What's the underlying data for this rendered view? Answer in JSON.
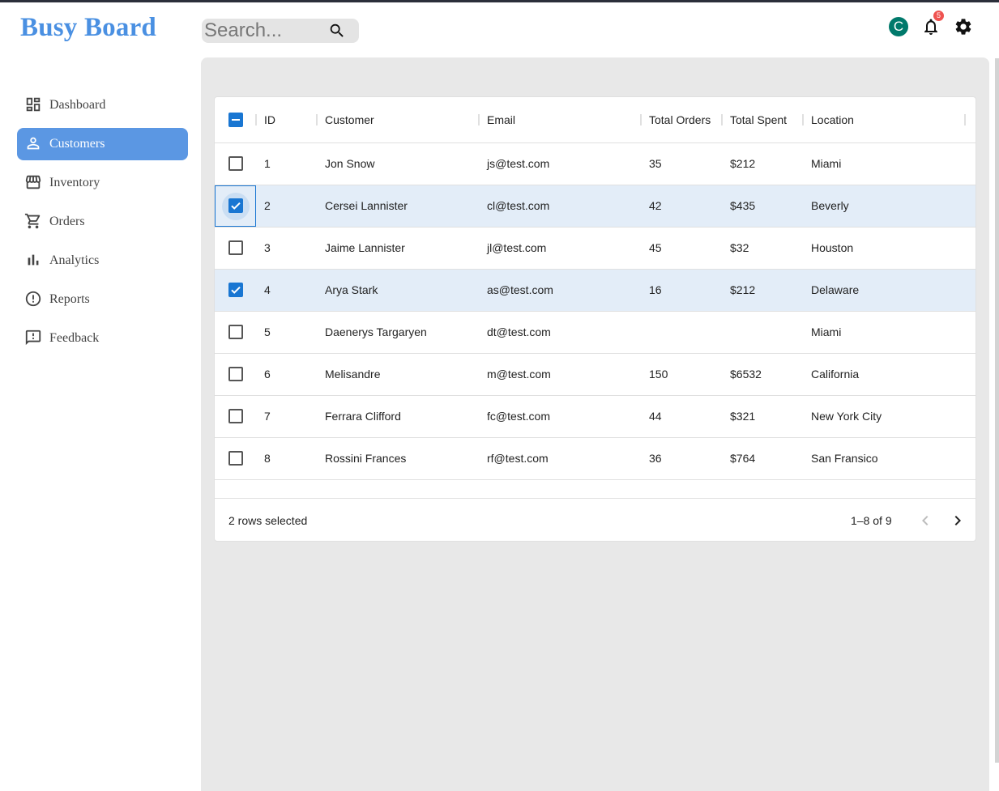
{
  "brand": "Busy Board",
  "search": {
    "placeholder": "Search..."
  },
  "header": {
    "avatar_letter": "C",
    "notification_count": "5"
  },
  "colors": {
    "accent": "#5b97e3",
    "brand": "#4a90e2",
    "checkbox": "#1976d2",
    "avatar": "#00796b",
    "badge": "#ef5350"
  },
  "sidebar": {
    "items": [
      {
        "label": "Dashboard",
        "icon": "dashboard-icon"
      },
      {
        "label": "Customers",
        "icon": "person-icon",
        "active": true
      },
      {
        "label": "Inventory",
        "icon": "store-icon"
      },
      {
        "label": "Orders",
        "icon": "cart-icon"
      },
      {
        "label": "Analytics",
        "icon": "bar-chart-icon"
      },
      {
        "label": "Reports",
        "icon": "alert-circle-icon"
      },
      {
        "label": "Feedback",
        "icon": "feedback-icon"
      }
    ]
  },
  "table": {
    "columns": [
      "ID",
      "Customer",
      "Email",
      "Total Orders",
      "Total Spent",
      "Location"
    ],
    "rows": [
      {
        "id": "1",
        "customer": "Jon Snow",
        "email": "js@test.com",
        "orders": "35",
        "spent": "$212",
        "location": "Miami",
        "selected": false
      },
      {
        "id": "2",
        "customer": "Cersei Lannister",
        "email": "cl@test.com",
        "orders": "42",
        "spent": "$435",
        "location": "Beverly",
        "selected": true
      },
      {
        "id": "3",
        "customer": "Jaime Lannister",
        "email": "jl@test.com",
        "orders": "45",
        "spent": "$32",
        "location": "Houston",
        "selected": false
      },
      {
        "id": "4",
        "customer": "Arya Stark",
        "email": "as@test.com",
        "orders": "16",
        "spent": "$212",
        "location": "Delaware",
        "selected": true
      },
      {
        "id": "5",
        "customer": "Daenerys Targaryen",
        "email": "dt@test.com",
        "orders": "",
        "spent": "",
        "location": "Miami",
        "selected": false
      },
      {
        "id": "6",
        "customer": "Melisandre",
        "email": "m@test.com",
        "orders": "150",
        "spent": "$6532",
        "location": "California",
        "selected": false
      },
      {
        "id": "7",
        "customer": "Ferrara Clifford",
        "email": "fc@test.com",
        "orders": "44",
        "spent": "$321",
        "location": "New York City",
        "selected": false
      },
      {
        "id": "8",
        "customer": "Rossini Frances",
        "email": "rf@test.com",
        "orders": "36",
        "spent": "$764",
        "location": "San Fransico",
        "selected": false
      }
    ]
  },
  "footer": {
    "selected_text": "2 rows selected",
    "range_text": "1–8 of 9"
  }
}
